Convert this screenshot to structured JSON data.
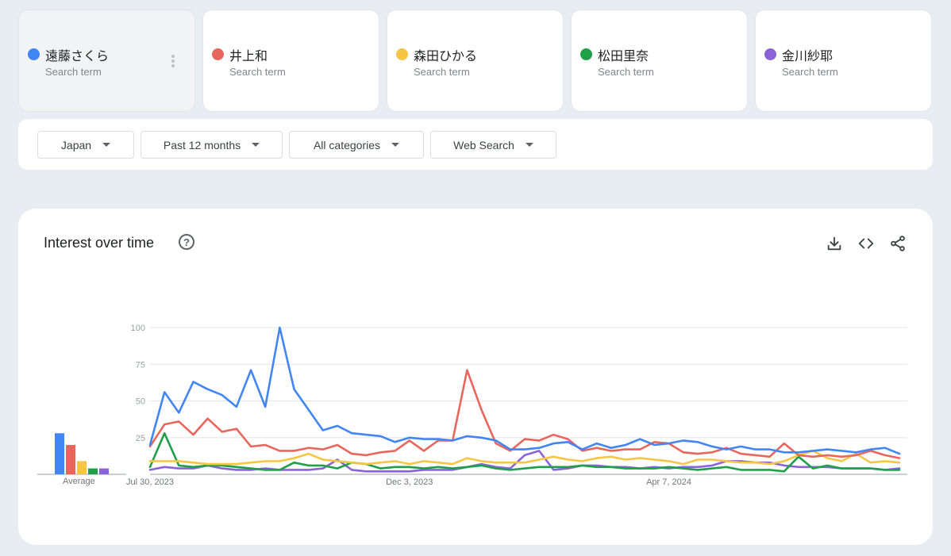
{
  "terms": [
    {
      "name": "遠藤さくら",
      "sub": "Search term",
      "color": "#4285f4"
    },
    {
      "name": "井上和",
      "sub": "Search term",
      "color": "#e8675c"
    },
    {
      "name": "森田ひかる",
      "sub": "Search term",
      "color": "#f6c544"
    },
    {
      "name": "松田里奈",
      "sub": "Search term",
      "color": "#1f9f48"
    },
    {
      "name": "金川紗耶",
      "sub": "Search term",
      "color": "#8a64d6"
    }
  ],
  "filters": {
    "region": "Japan",
    "period": "Past 12 months",
    "category": "All categories",
    "search_type": "Web Search"
  },
  "section": {
    "title": "Interest over time",
    "help": "?"
  },
  "average_label": "Average",
  "chart_data": {
    "type": "line",
    "title": "",
    "xlabel": "",
    "ylabel": "",
    "ylim": [
      0,
      100
    ],
    "yticks": [
      25,
      50,
      75,
      100
    ],
    "x_tick_labels": [
      {
        "label": "Jul 30, 2023",
        "index": 0
      },
      {
        "label": "Dec 3, 2023",
        "index": 18
      },
      {
        "label": "Apr 7, 2024",
        "index": 36
      }
    ],
    "grid": true,
    "averages": [
      28,
      20,
      9,
      4,
      4
    ],
    "series": [
      {
        "name": "遠藤さくら",
        "color": "#4285f4",
        "values": [
          20,
          56,
          42,
          63,
          58,
          54,
          46,
          71,
          46,
          100,
          58,
          44,
          30,
          33,
          28,
          27,
          26,
          22,
          25,
          24,
          24,
          23,
          26,
          25,
          23,
          17,
          17,
          18,
          21,
          22,
          17,
          21,
          18,
          20,
          24,
          20,
          21,
          23,
          22,
          19,
          17,
          19,
          17,
          17,
          15,
          15,
          16,
          17,
          16,
          15,
          17,
          18,
          14
        ]
      },
      {
        "name": "井上和",
        "color": "#e8675c",
        "values": [
          19,
          34,
          36,
          27,
          38,
          29,
          31,
          19,
          20,
          16,
          16,
          18,
          17,
          20,
          14,
          13,
          15,
          16,
          23,
          16,
          23,
          23,
          71,
          44,
          21,
          16,
          24,
          23,
          27,
          24,
          16,
          18,
          16,
          17,
          17,
          22,
          21,
          15,
          14,
          15,
          18,
          14,
          13,
          12,
          21,
          13,
          12,
          13,
          12,
          13,
          16,
          13,
          11
        ]
      },
      {
        "name": "森田ひかる",
        "color": "#f6c544",
        "values": [
          9,
          9,
          9,
          8,
          7,
          7,
          7,
          8,
          9,
          9,
          11,
          14,
          10,
          9,
          8,
          7,
          8,
          9,
          7,
          9,
          8,
          7,
          11,
          9,
          8,
          8,
          8,
          10,
          12,
          10,
          9,
          11,
          12,
          10,
          11,
          10,
          9,
          7,
          10,
          10,
          9,
          8,
          8,
          7,
          9,
          13,
          16,
          11,
          9,
          14,
          8,
          9,
          8
        ]
      },
      {
        "name": "松田里奈",
        "color": "#1f9f48",
        "values": [
          5,
          28,
          6,
          5,
          6,
          6,
          5,
          4,
          3,
          3,
          8,
          6,
          6,
          4,
          8,
          7,
          4,
          5,
          5,
          4,
          5,
          4,
          5,
          6,
          4,
          3,
          4,
          5,
          5,
          5,
          6,
          5,
          5,
          4,
          4,
          4,
          5,
          4,
          3,
          4,
          5,
          3,
          3,
          3,
          2,
          12,
          4,
          6,
          4,
          4,
          4,
          3,
          3
        ]
      },
      {
        "name": "金川紗耶",
        "color": "#8a64d6",
        "values": [
          3,
          5,
          4,
          4,
          6,
          4,
          3,
          3,
          4,
          3,
          3,
          3,
          4,
          10,
          3,
          2,
          2,
          2,
          2,
          3,
          3,
          3,
          5,
          7,
          5,
          4,
          13,
          16,
          3,
          4,
          6,
          6,
          5,
          5,
          4,
          5,
          4,
          5,
          5,
          6,
          9,
          9,
          8,
          8,
          6,
          5,
          5,
          5,
          4,
          4,
          4,
          3,
          4
        ]
      }
    ]
  }
}
